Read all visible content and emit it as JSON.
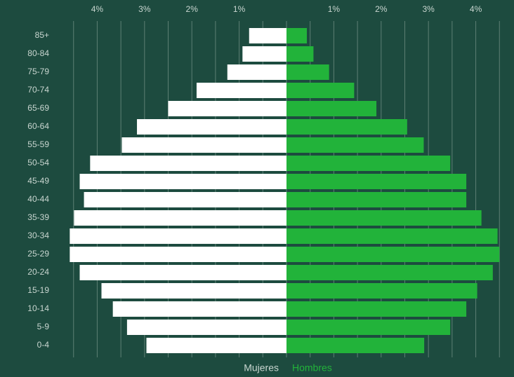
{
  "chart_data": {
    "type": "pyramid",
    "categories": [
      "85+",
      "80-84",
      "75-79",
      "70-74",
      "65-69",
      "60-64",
      "55-59",
      "50-54",
      "45-49",
      "40-44",
      "35-39",
      "30-34",
      "25-29",
      "20-24",
      "15-19",
      "10-14",
      "5-9",
      "0-4"
    ],
    "series": [
      {
        "name": "Mujeres",
        "color": "#ffffff",
        "side": "left",
        "values": [
          0.79,
          0.93,
          1.25,
          1.9,
          2.5,
          3.16,
          3.48,
          4.15,
          4.37,
          4.28,
          4.49,
          4.58,
          4.58,
          4.37,
          3.91,
          3.67,
          3.37,
          2.96
        ]
      },
      {
        "name": "Hombres",
        "color": "#22b33a",
        "side": "right",
        "values": [
          0.43,
          0.57,
          0.9,
          1.43,
          1.9,
          2.55,
          2.9,
          3.46,
          3.8,
          3.8,
          4.12,
          4.46,
          4.5,
          4.36,
          4.03,
          3.8,
          3.46,
          2.91
        ]
      }
    ],
    "xlim": [
      0,
      4.6
    ],
    "xticks": [
      {
        "value": 1,
        "label": "1%"
      },
      {
        "value": 2,
        "label": "2%"
      },
      {
        "value": 3,
        "label": "3%"
      },
      {
        "value": 4,
        "label": "4%"
      }
    ],
    "minor_xticks": [
      0.5,
      1.5,
      2.5,
      3.5,
      4.5
    ],
    "grid": true
  }
}
